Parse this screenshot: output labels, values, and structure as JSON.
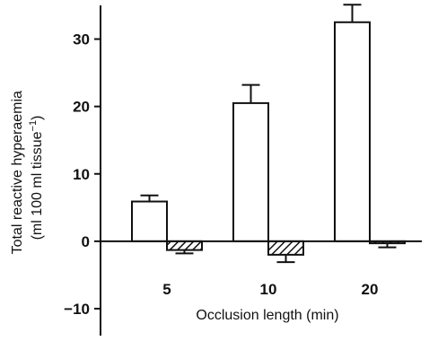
{
  "chart_data": {
    "type": "bar",
    "title": "",
    "xlabel": "Occlusion length (min)",
    "ylabel_main": "Total reactive hyperaemia",
    "ylabel_unit": "(ml 100 ml tissue",
    "ylabel_sup": "−1",
    "ylabel_close": ")",
    "categories": [
      "5",
      "10",
      "20"
    ],
    "ylim": [
      -14,
      35
    ],
    "yticks": [
      -10,
      0,
      10,
      20,
      30
    ],
    "ytick_labels": [
      "−10",
      "0",
      "10",
      "20",
      "30"
    ],
    "series": [
      {
        "values": [
          5.9,
          20.5,
          32.5
        ],
        "errors": [
          0.9,
          2.7,
          2.6
        ],
        "fill": "#ffffff"
      },
      {
        "values": [
          -1.3,
          -2.0,
          -0.3
        ],
        "errors": [
          0.5,
          1.1,
          0.6
        ],
        "fill": "hatched"
      }
    ],
    "grid": false
  }
}
